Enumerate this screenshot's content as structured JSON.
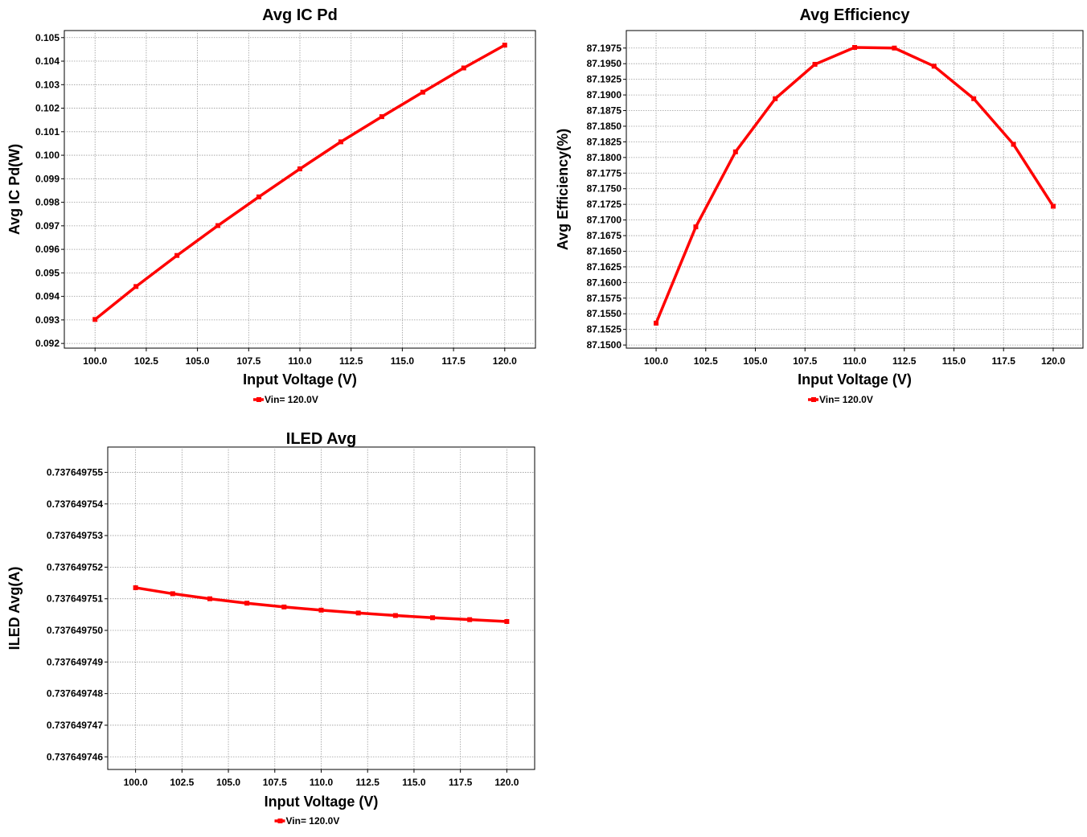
{
  "chart_data": [
    {
      "type": "line",
      "title": "Avg IC Pd",
      "xlabel": "Input Voltage (V)",
      "ylabel": "Avg IC Pd(W)",
      "xlim": [
        98.5,
        121.5
      ],
      "ylim": [
        0.0918,
        0.1053
      ],
      "x_ticks": [
        "100.0",
        "102.5",
        "105.0",
        "107.5",
        "110.0",
        "112.5",
        "115.0",
        "117.5",
        "120.0"
      ],
      "y_ticks": [
        "0.092",
        "0.093",
        "0.094",
        "0.095",
        "0.096",
        "0.097",
        "0.098",
        "0.099",
        "0.100",
        "0.101",
        "0.102",
        "0.103",
        "0.104",
        "0.105"
      ],
      "grid": true,
      "legend_position": "bottom-center",
      "series": [
        {
          "name": "Vin= 120.0V",
          "color": "#ff0000",
          "x": [
            100,
            102,
            104,
            106,
            108,
            110,
            112,
            114,
            116,
            118,
            120
          ],
          "values": [
            0.09302,
            0.09442,
            0.09574,
            0.09701,
            0.09823,
            0.09942,
            0.10057,
            0.10164,
            0.10268,
            0.10371,
            0.10468
          ]
        }
      ]
    },
    {
      "type": "line",
      "title": "Avg Efficiency",
      "xlabel": "Input Voltage (V)",
      "ylabel": "Avg Efficiency(%)",
      "xlim": [
        98.5,
        121.5
      ],
      "ylim": [
        87.1495,
        87.2003
      ],
      "x_ticks": [
        "100.0",
        "102.5",
        "105.0",
        "107.5",
        "110.0",
        "112.5",
        "115.0",
        "117.5",
        "120.0"
      ],
      "y_ticks": [
        "87.1500",
        "87.1525",
        "87.1550",
        "87.1575",
        "87.1600",
        "87.1625",
        "87.1650",
        "87.1675",
        "87.1700",
        "87.1725",
        "87.1750",
        "87.1775",
        "87.1800",
        "87.1825",
        "87.1850",
        "87.1875",
        "87.1900",
        "87.1925",
        "87.1950",
        "87.1975"
      ],
      "grid": true,
      "legend_position": "bottom-center",
      "series": [
        {
          "name": "Vin= 120.0V",
          "color": "#ff0000",
          "x": [
            100,
            102,
            104,
            106,
            108,
            110,
            112,
            114,
            116,
            118,
            120
          ],
          "values": [
            87.1535,
            87.1689,
            87.1809,
            87.1894,
            87.1949,
            87.1976,
            87.1975,
            87.1946,
            87.1894,
            87.1821,
            87.1722
          ]
        }
      ]
    },
    {
      "type": "line",
      "title": "ILED Avg",
      "xlabel": "Input Voltage (V)",
      "ylabel": "ILED Avg(A)",
      "xlim": [
        98.5,
        121.5
      ],
      "ylim": [
        0.7376497456,
        0.7376497558
      ],
      "x_ticks": [
        "100.0",
        "102.5",
        "105.0",
        "107.5",
        "110.0",
        "112.5",
        "115.0",
        "117.5",
        "120.0"
      ],
      "y_ticks": [
        "0.737649746",
        "0.737649747",
        "0.737649748",
        "0.737649749",
        "0.737649750",
        "0.737649751",
        "0.737649752",
        "0.737649753",
        "0.737649754",
        "0.737649755"
      ],
      "grid": true,
      "legend_position": "bottom-center",
      "series": [
        {
          "name": "Vin= 120.0V",
          "color": "#ff0000",
          "x": [
            100,
            102,
            104,
            106,
            108,
            110,
            112,
            114,
            116,
            118,
            120
          ],
          "values": [
            0.73764975135,
            0.73764975116,
            0.737649751,
            0.73764975086,
            0.73764975074,
            0.73764975064,
            0.73764975055,
            0.73764975047,
            0.7376497504,
            0.73764975034,
            0.73764975028
          ]
        }
      ]
    }
  ]
}
